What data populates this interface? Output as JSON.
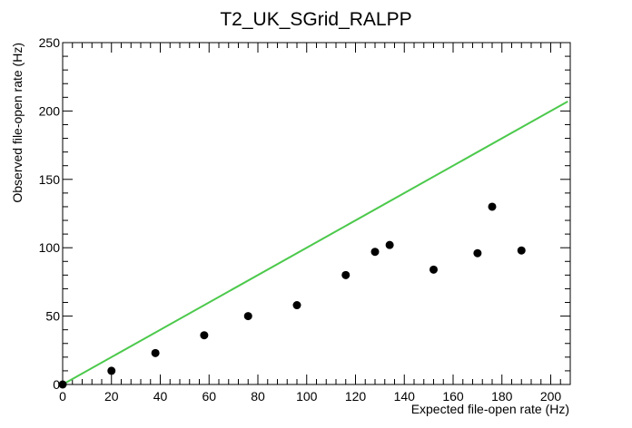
{
  "chart_data": {
    "type": "scatter",
    "title": "T2_UK_SGrid_RALPP",
    "xlabel": "Expected file-open rate (Hz)",
    "ylabel": "Observed file-open rate (Hz)",
    "xlim": [
      0,
      208
    ],
    "ylim": [
      0,
      250
    ],
    "x_ticks": [
      0,
      20,
      40,
      60,
      80,
      100,
      120,
      140,
      160,
      180,
      200
    ],
    "y_ticks": [
      0,
      50,
      100,
      150,
      200,
      250
    ],
    "grid": false,
    "series": [
      {
        "points": [
          {
            "x": 0,
            "y": 0
          },
          {
            "x": 20,
            "y": 10
          },
          {
            "x": 38,
            "y": 23
          },
          {
            "x": 58,
            "y": 36
          },
          {
            "x": 76,
            "y": 50
          },
          {
            "x": 96,
            "y": 58
          },
          {
            "x": 116,
            "y": 80
          },
          {
            "x": 128,
            "y": 97
          },
          {
            "x": 134,
            "y": 102
          },
          {
            "x": 152,
            "y": 84
          },
          {
            "x": 170,
            "y": 96
          },
          {
            "x": 176,
            "y": 130
          },
          {
            "x": 188,
            "y": 98
          }
        ],
        "color": "#000000"
      }
    ],
    "reference_line": {
      "from": {
        "x": 0,
        "y": 0
      },
      "to": {
        "x": 207,
        "y": 207
      },
      "color": "#4cc94c"
    }
  }
}
